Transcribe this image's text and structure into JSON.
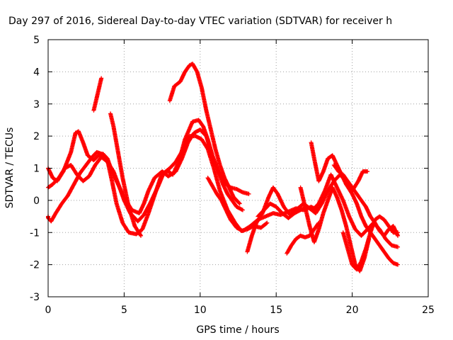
{
  "chart_data": {
    "type": "scatter",
    "title": "Day 297 of 2016, Sidereal Day-to-day VTEC variation (SDTVAR) for receiver h",
    "xlabel": "GPS time / hours",
    "ylabel": "SDTVAR / TECUs",
    "xlim": [
      0,
      25
    ],
    "ylim": [
      -3,
      5
    ],
    "x_ticks": [
      0,
      5,
      10,
      15,
      20,
      25
    ],
    "y_ticks": [
      -3,
      -2,
      -1,
      0,
      1,
      2,
      3,
      4,
      5
    ],
    "x_tick_labels": [
      "0",
      "5",
      "10",
      "15",
      "20",
      "25"
    ],
    "y_tick_labels": [
      "-3",
      "-2",
      "-1",
      "0",
      "1",
      "2",
      "3",
      "4",
      "5"
    ],
    "grid": true,
    "marker": "+",
    "marker_color": "#ff0000",
    "series": [
      {
        "x": [
          0.0,
          0.3,
          0.6,
          1.0,
          1.5,
          1.8,
          2.0,
          2.3,
          2.6,
          3.0,
          3.3,
          3.6,
          3.9,
          4.2,
          4.6,
          5.0,
          5.5,
          6.0,
          6.3,
          6.6,
          7.0,
          7.5,
          7.9,
          8.4,
          8.8,
          9.2,
          9.6,
          10.0,
          10.4,
          10.8,
          11.2,
          11.5,
          11.8,
          12.1,
          12.4,
          12.8
        ],
        "y": [
          1.0,
          0.7,
          0.6,
          0.9,
          1.5,
          2.1,
          2.15,
          1.8,
          1.4,
          1.25,
          1.4,
          1.45,
          1.3,
          0.9,
          0.5,
          0.1,
          -0.3,
          -0.4,
          -0.1,
          0.3,
          0.7,
          0.9,
          0.75,
          0.9,
          1.3,
          1.8,
          2.1,
          2.2,
          2.0,
          1.4,
          0.9,
          0.5,
          0.2,
          0.0,
          -0.2,
          -0.3
        ]
      },
      {
        "x": [
          -0.1,
          0.2,
          0.5,
          0.9,
          1.3,
          1.7,
          2.1,
          2.5,
          2.9,
          3.2,
          3.5,
          3.9,
          4.2,
          4.5,
          4.9,
          5.3,
          5.8,
          6.2,
          6.6,
          7.1,
          7.5,
          7.9,
          8.2,
          8.6,
          9.0,
          9.5,
          9.9,
          10.2,
          10.5,
          10.8,
          11.2,
          11.6,
          12.0,
          12.4,
          12.8,
          13.2
        ],
        "y": [
          -0.5,
          -0.65,
          -0.4,
          -0.1,
          0.15,
          0.5,
          0.85,
          1.1,
          1.35,
          1.5,
          1.45,
          1.25,
          0.6,
          -0.1,
          -0.7,
          -1.0,
          -1.05,
          -0.9,
          -0.4,
          0.3,
          0.85,
          0.9,
          0.8,
          1.2,
          1.9,
          2.45,
          2.5,
          2.3,
          1.9,
          1.4,
          0.9,
          0.55,
          0.4,
          0.35,
          0.25,
          0.2
        ]
      },
      {
        "x": [
          0.0,
          0.3,
          0.7,
          1.1,
          1.5,
          1.9,
          2.3,
          2.7,
          3.1,
          3.5,
          3.9,
          4.3,
          4.7,
          5.0,
          5.4,
          5.9,
          6.3,
          6.7,
          7.2,
          7.6,
          8.0,
          8.4,
          8.9,
          9.3,
          9.7,
          10.1,
          10.5,
          10.9,
          11.3,
          11.8,
          12.3,
          12.7,
          13.1,
          13.5,
          14.0,
          14.4
        ],
        "y": [
          0.4,
          0.5,
          0.7,
          1.0,
          1.1,
          0.8,
          0.6,
          0.75,
          1.1,
          1.35,
          1.2,
          0.9,
          0.4,
          0.0,
          -0.4,
          -0.65,
          -0.45,
          -0.1,
          0.4,
          0.85,
          1.0,
          1.2,
          1.6,
          2.0,
          2.0,
          1.9,
          1.6,
          1.0,
          0.3,
          -0.3,
          -0.7,
          -0.95,
          -0.9,
          -0.8,
          -0.85,
          -0.7
        ]
      },
      {
        "x": [
          3.0,
          3.2,
          3.5
        ],
        "y": [
          2.8,
          3.2,
          3.8
        ]
      },
      {
        "x": [
          4.1,
          4.3,
          4.6,
          4.9,
          5.3,
          5.7,
          6.1
        ],
        "y": [
          2.7,
          2.3,
          1.5,
          0.7,
          -0.2,
          -0.8,
          -1.1
        ]
      },
      {
        "x": [
          8.0,
          8.3,
          8.7,
          9.0,
          9.3,
          9.5,
          9.8,
          10.1,
          10.4,
          10.7,
          11.0,
          11.3,
          11.6,
          11.9,
          12.2,
          12.6
        ],
        "y": [
          3.1,
          3.55,
          3.7,
          4.0,
          4.2,
          4.25,
          4.0,
          3.5,
          2.8,
          2.2,
          1.6,
          1.1,
          0.7,
          0.4,
          0.1,
          -0.1
        ]
      },
      {
        "x": [
          10.5,
          10.8,
          11.1,
          11.4,
          11.7,
          12.0,
          12.4,
          12.8,
          13.3,
          13.8,
          14.3,
          14.8,
          15.3,
          15.8,
          16.3,
          16.8,
          17.3,
          17.7
        ],
        "y": [
          0.7,
          0.45,
          0.2,
          0.0,
          -0.3,
          -0.6,
          -0.85,
          -0.95,
          -0.8,
          -0.6,
          -0.5,
          -0.4,
          -0.45,
          -0.35,
          -0.25,
          -0.3,
          -0.2,
          -0.3
        ]
      },
      {
        "x": [
          13.1,
          13.4,
          13.7,
          14.1,
          14.5,
          14.8,
          15.1,
          15.5,
          15.9,
          16.3,
          16.8,
          17.2,
          17.6,
          18.0,
          18.4,
          18.8,
          19.2,
          19.6,
          20.0,
          20.4,
          20.7,
          21.0
        ],
        "y": [
          -1.6,
          -1.1,
          -0.7,
          -0.4,
          0.1,
          0.4,
          0.2,
          -0.2,
          -0.45,
          -0.3,
          -0.1,
          -0.25,
          -0.4,
          -0.1,
          0.3,
          0.6,
          0.8,
          0.6,
          0.3,
          0.6,
          0.9,
          0.9
        ]
      },
      {
        "x": [
          13.8,
          14.2,
          14.6,
          15.0,
          15.4,
          15.8,
          16.2,
          16.6,
          17.0,
          17.4,
          17.8,
          18.2,
          18.6,
          19.0,
          19.4,
          19.8,
          20.2,
          20.6,
          21.0,
          21.4,
          21.8,
          22.2,
          22.6,
          23.0
        ],
        "y": [
          -0.5,
          -0.3,
          -0.1,
          -0.2,
          -0.4,
          -0.55,
          -0.4,
          -0.3,
          -0.2,
          -0.3,
          -0.1,
          0.3,
          0.8,
          0.4,
          0.0,
          -0.5,
          -0.9,
          -1.1,
          -0.9,
          -0.7,
          -0.9,
          -1.2,
          -1.4,
          -1.45
        ]
      },
      {
        "x": [
          15.7,
          16.0,
          16.3,
          16.6,
          16.9,
          17.2,
          17.5,
          17.8
        ],
        "y": [
          -1.65,
          -1.4,
          -1.2,
          -1.1,
          -1.15,
          -1.1,
          -0.9,
          -0.7
        ]
      },
      {
        "x": [
          16.6,
          16.9,
          17.2,
          17.5,
          17.8,
          18.1,
          18.4,
          18.7,
          19.0,
          19.3,
          19.6,
          19.9,
          20.2,
          20.5,
          20.8,
          21.1
        ],
        "y": [
          0.4,
          -0.2,
          -0.8,
          -1.3,
          -0.9,
          -0.4,
          0.0,
          0.4,
          0.1,
          -0.3,
          -0.8,
          -1.4,
          -2.0,
          -2.2,
          -1.8,
          -1.2
        ]
      },
      {
        "x": [
          17.3,
          17.5,
          17.8,
          18.1,
          18.4,
          18.7,
          19.0,
          19.3,
          19.6,
          20.0,
          20.3,
          20.6,
          20.9,
          21.2,
          21.5,
          21.8,
          22.1,
          22.4,
          22.7,
          23.0
        ],
        "y": [
          1.8,
          1.3,
          0.6,
          0.9,
          1.3,
          1.4,
          1.1,
          0.8,
          0.5,
          0.2,
          -0.1,
          -0.5,
          -0.8,
          -1.0,
          -1.2,
          -1.4,
          -1.6,
          -1.8,
          -1.95,
          -2.0
        ]
      },
      {
        "x": [
          18.8,
          19.1,
          19.4,
          19.7,
          20.0,
          20.3,
          20.6,
          20.9,
          21.2,
          21.5,
          21.8,
          22.1,
          22.4,
          22.7,
          23.0
        ],
        "y": [
          1.1,
          0.9,
          0.8,
          0.6,
          0.4,
          0.2,
          0.0,
          -0.2,
          -0.5,
          -0.7,
          -0.95,
          -1.1,
          -0.9,
          -0.8,
          -1.1
        ]
      },
      {
        "x": [
          19.4,
          19.7,
          20.0,
          20.3,
          20.6,
          20.9,
          21.2,
          21.5,
          21.8,
          22.1,
          22.4,
          22.7,
          23.0
        ],
        "y": [
          -1.0,
          -1.5,
          -2.0,
          -2.15,
          -1.9,
          -1.5,
          -1.0,
          -0.6,
          -0.5,
          -0.6,
          -0.8,
          -1.0,
          -1.0
        ]
      }
    ]
  }
}
